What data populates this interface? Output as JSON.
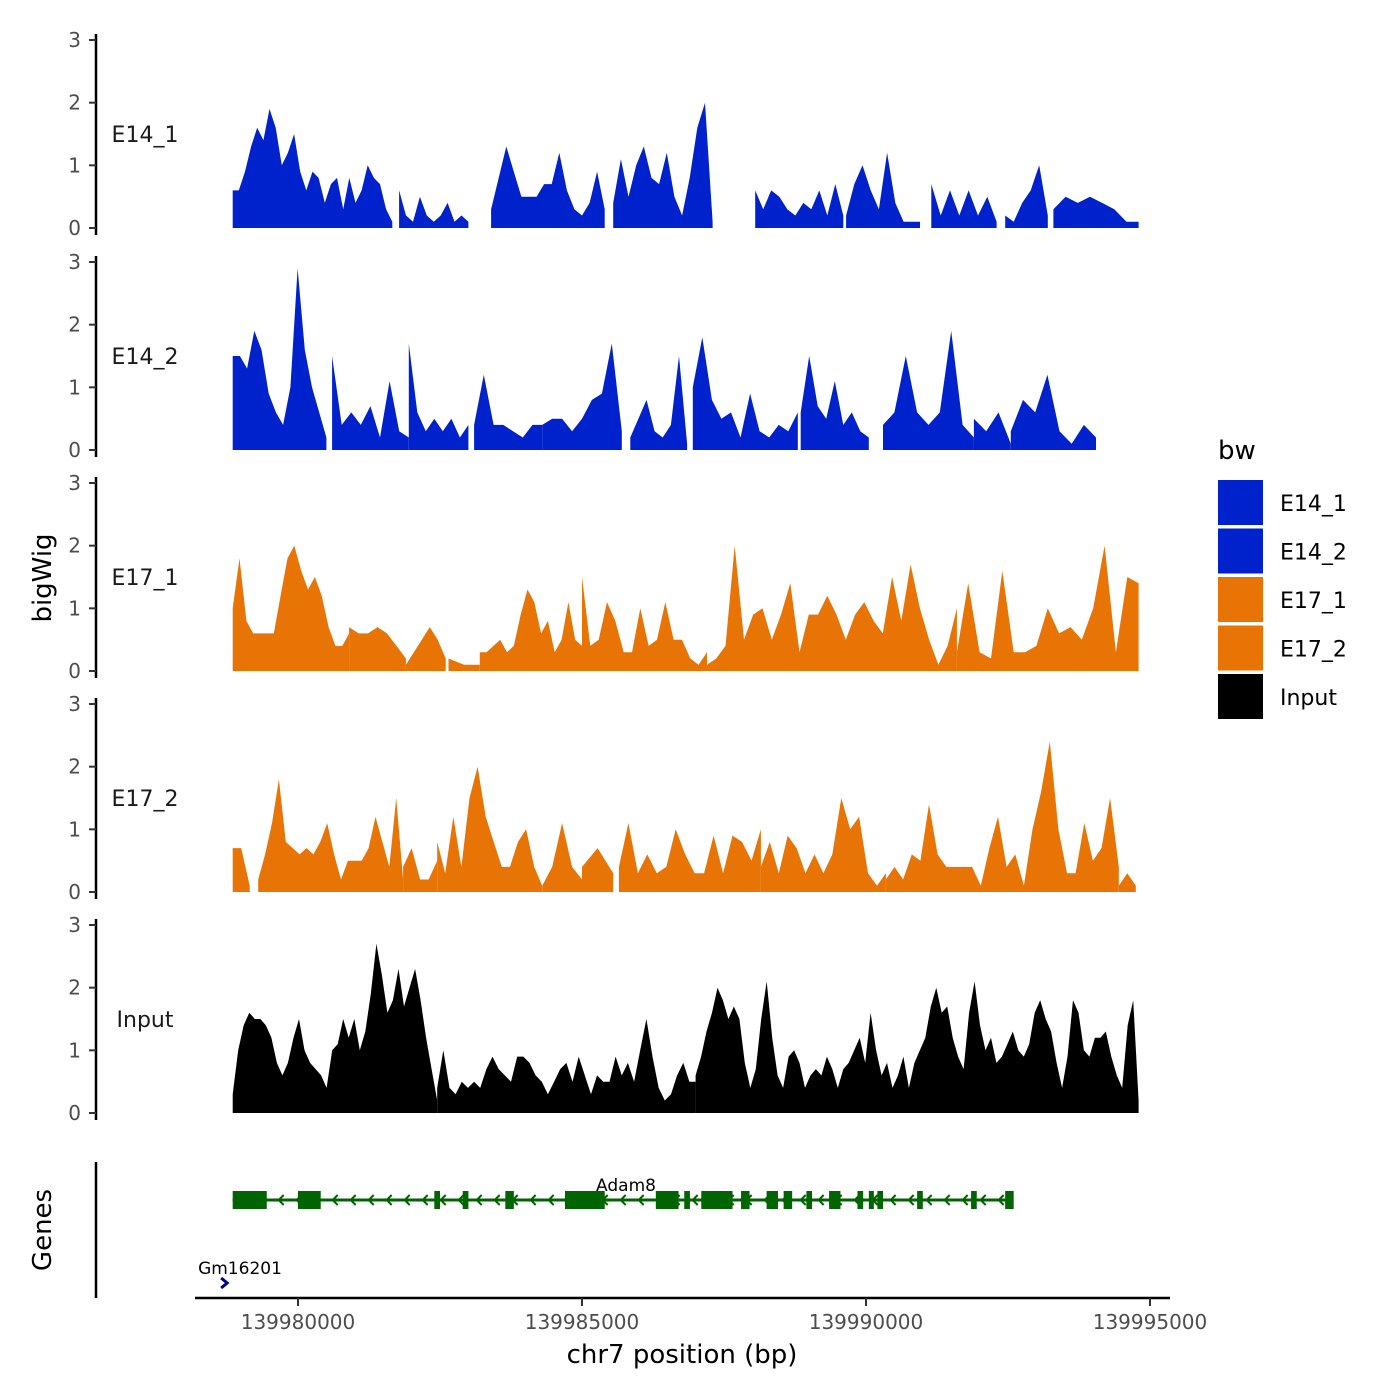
{
  "chart_data": {
    "type": "area",
    "title": "",
    "xlabel": "chr7 position (bp)",
    "ylabel": "bigWig",
    "genes_label": "Genes",
    "xlim": [
      139978200,
      139995400
    ],
    "ylim": [
      0,
      3
    ],
    "yticks": [
      0,
      1,
      2,
      3
    ],
    "xticks": [
      139980000,
      139985000,
      139990000,
      139995000
    ],
    "xtick_labels": [
      "139980000",
      "139985000",
      "139990000",
      "139995000"
    ],
    "legend": {
      "title": "bw",
      "position": "right",
      "entries": [
        {
          "name": "E14_1",
          "color": "#0022cc"
        },
        {
          "name": "E14_2",
          "color": "#0022cc"
        },
        {
          "name": "E17_1",
          "color": "#e87405"
        },
        {
          "name": "E17_2",
          "color": "#e87405"
        },
        {
          "name": "Input",
          "color": "#000000"
        }
      ]
    },
    "series": [
      {
        "name": "E14_1",
        "color": "#0022cc",
        "segments": [
          {
            "start": 139978850,
            "end": 139981660,
            "values": [
              0.6,
              0.6,
              0.9,
              1.3,
              1.6,
              1.4,
              1.9,
              1.6,
              1.0,
              1.2,
              1.5,
              0.9,
              0.6,
              0.9,
              0.8,
              0.4,
              0.7,
              0.8,
              0.3,
              0.8,
              0.4,
              0.6,
              1.0,
              0.8,
              0.7,
              0.3,
              0.1
            ]
          },
          {
            "start": 139981780,
            "end": 139983000,
            "values": [
              0.6,
              0.2,
              0.1,
              0.5,
              0.2,
              0.1,
              0.2,
              0.4,
              0.1,
              0.2,
              0.1
            ]
          },
          {
            "start": 139983400,
            "end": 139985400,
            "values": [
              0.3,
              0.8,
              1.3,
              0.9,
              0.5,
              0.5,
              0.5,
              0.7,
              0.7,
              1.2,
              0.6,
              0.3,
              0.2,
              0.4,
              0.9,
              0.3
            ]
          },
          {
            "start": 139985550,
            "end": 139987300,
            "values": [
              0.4,
              1.1,
              0.5,
              1.0,
              1.3,
              0.8,
              0.7,
              1.2,
              0.5,
              0.2,
              0.8,
              1.6,
              2.0,
              0.1
            ]
          },
          {
            "start": 139988050,
            "end": 139989600,
            "values": [
              0.6,
              0.3,
              0.6,
              0.5,
              0.3,
              0.2,
              0.4,
              0.3,
              0.6,
              0.2,
              0.7,
              0.2
            ]
          },
          {
            "start": 139989650,
            "end": 139990950,
            "values": [
              0.2,
              0.7,
              1.0,
              0.6,
              0.3,
              1.2,
              0.4,
              0.1,
              0.1,
              0.1
            ]
          },
          {
            "start": 139991150,
            "end": 139992300,
            "values": [
              0.7,
              0.2,
              0.6,
              0.2,
              0.6,
              0.2,
              0.5,
              0.1
            ]
          },
          {
            "start": 139992450,
            "end": 139993200,
            "values": [
              0.2,
              0.1,
              0.4,
              0.6,
              1.0,
              0.2
            ]
          },
          {
            "start": 139993300,
            "end": 139994800,
            "values": [
              0.3,
              0.5,
              0.4,
              0.5,
              0.4,
              0.3,
              0.1,
              0.1
            ]
          }
        ]
      },
      {
        "name": "E14_2",
        "color": "#0022cc",
        "segments": [
          {
            "start": 139978850,
            "end": 139980500,
            "values": [
              1.5,
              1.5,
              1.3,
              1.9,
              1.6,
              0.9,
              0.6,
              0.4,
              1.0,
              2.9,
              1.6,
              1.0,
              0.6,
              0.2
            ]
          },
          {
            "start": 139980600,
            "end": 139981950,
            "values": [
              1.5,
              0.4,
              0.6,
              0.4,
              0.7,
              0.2,
              1.1,
              0.3,
              0.2
            ]
          },
          {
            "start": 139981950,
            "end": 139983000,
            "values": [
              1.7,
              0.6,
              0.3,
              0.5,
              0.3,
              0.5,
              0.2,
              0.4
            ]
          },
          {
            "start": 139983100,
            "end": 139984300,
            "values": [
              0.4,
              1.2,
              0.4,
              0.4,
              0.3,
              0.2,
              0.4,
              0.4
            ]
          },
          {
            "start": 139984300,
            "end": 139985700,
            "values": [
              0.4,
              0.5,
              0.5,
              0.3,
              0.5,
              0.8,
              0.9,
              1.7,
              0.3
            ]
          },
          {
            "start": 139985850,
            "end": 139986850,
            "values": [
              0.2,
              0.5,
              0.8,
              0.3,
              0.2,
              0.4,
              1.5,
              0.1
            ]
          },
          {
            "start": 139986950,
            "end": 139988800,
            "values": [
              1.0,
              1.8,
              0.8,
              0.5,
              0.6,
              0.2,
              0.9,
              0.3,
              0.2,
              0.4,
              0.3,
              0.6
            ]
          },
          {
            "start": 139988850,
            "end": 139990050,
            "values": [
              0.6,
              1.5,
              0.7,
              0.5,
              1.1,
              0.4,
              0.6,
              0.3,
              0.2
            ]
          },
          {
            "start": 139990300,
            "end": 139991900,
            "values": [
              0.4,
              0.6,
              1.5,
              0.6,
              0.4,
              0.6,
              1.9,
              0.4,
              0.2
            ]
          },
          {
            "start": 139991900,
            "end": 139992550,
            "values": [
              0.5,
              0.3,
              0.6,
              0.1
            ]
          },
          {
            "start": 139992550,
            "end": 139994050,
            "values": [
              0.3,
              0.8,
              0.6,
              1.2,
              0.3,
              0.1,
              0.4,
              0.2
            ]
          }
        ]
      },
      {
        "name": "E17_1",
        "color": "#e87405",
        "segments": [
          {
            "start": 139978850,
            "end": 139980900,
            "values": [
              1.0,
              1.8,
              0.8,
              0.6,
              0.6,
              0.6,
              0.6,
              1.2,
              1.8,
              2.0,
              1.6,
              1.3,
              1.5,
              1.2,
              0.7,
              0.4,
              0.4,
              0.6
            ]
          },
          {
            "start": 139980900,
            "end": 139981900,
            "values": [
              0.7,
              0.6,
              0.6,
              0.7,
              0.6,
              0.4,
              0.2
            ]
          },
          {
            "start": 139981900,
            "end": 139982600,
            "values": [
              0.1,
              0.3,
              0.5,
              0.7,
              0.5,
              0.2
            ]
          },
          {
            "start": 139982650,
            "end": 139983200,
            "values": [
              0.2,
              0.1,
              0.1
            ]
          },
          {
            "start": 139983200,
            "end": 139985000,
            "values": [
              0.3,
              0.3,
              0.4,
              0.5,
              0.3,
              0.4,
              0.9,
              1.3,
              1.1,
              0.6,
              0.8,
              0.3,
              0.5,
              1.1,
              0.5,
              0.4
            ]
          },
          {
            "start": 139985000,
            "end": 139987200,
            "values": [
              1.5,
              0.4,
              0.5,
              1.1,
              0.8,
              0.3,
              0.3,
              1.0,
              0.4,
              0.5,
              1.1,
              0.5,
              0.5,
              0.2,
              0.1,
              0.3
            ]
          },
          {
            "start": 139987200,
            "end": 139991600,
            "values": [
              0.1,
              0.2,
              0.4,
              2.0,
              0.5,
              0.9,
              1.0,
              0.5,
              0.9,
              1.4,
              0.3,
              0.9,
              0.9,
              1.2,
              0.9,
              0.5,
              0.9,
              1.1,
              0.8,
              0.6,
              1.5,
              0.8,
              1.7,
              1.0,
              0.5,
              0.1,
              0.4,
              1.0
            ]
          },
          {
            "start": 139991600,
            "end": 139994800,
            "values": [
              0.3,
              1.4,
              0.3,
              0.2,
              1.6,
              0.3,
              0.3,
              0.4,
              1.0,
              0.6,
              0.7,
              0.5,
              1.0,
              2.0,
              0.3,
              1.5,
              1.4
            ]
          }
        ]
      },
      {
        "name": "E17_2",
        "color": "#e87405",
        "segments": [
          {
            "start": 139978850,
            "end": 139979150,
            "values": [
              0.7,
              0.7,
              0.1
            ]
          },
          {
            "start": 139979300,
            "end": 139981850,
            "values": [
              0.2,
              0.6,
              1.1,
              1.8,
              0.8,
              0.7,
              0.6,
              0.7,
              0.6,
              0.8,
              1.1,
              0.6,
              0.2,
              0.5,
              0.5,
              0.5,
              0.7,
              1.2,
              0.8,
              0.4,
              1.5,
              0.2
            ]
          },
          {
            "start": 139981850,
            "end": 139982450,
            "values": [
              0.4,
              0.7,
              0.2,
              0.2,
              0.5
            ]
          },
          {
            "start": 139982450,
            "end": 139984300,
            "values": [
              0.8,
              0.3,
              1.2,
              0.4,
              1.5,
              2.0,
              1.2,
              0.8,
              0.4,
              0.4,
              0.8,
              1.0,
              0.4,
              0.1
            ]
          },
          {
            "start": 139984300,
            "end": 139985000,
            "values": [
              0.1,
              0.4,
              1.1,
              0.4,
              0.2
            ]
          },
          {
            "start": 139985000,
            "end": 139985550,
            "values": [
              0.4,
              0.7,
              0.3
            ]
          },
          {
            "start": 139985650,
            "end": 139988150,
            "values": [
              0.4,
              1.1,
              0.3,
              0.6,
              0.3,
              0.4,
              1.0,
              0.6,
              0.3,
              0.3,
              0.9,
              0.3,
              0.9,
              0.8,
              0.5,
              1.0
            ]
          },
          {
            "start": 139988150,
            "end": 139990350,
            "values": [
              0.4,
              0.8,
              0.3,
              0.9,
              0.7,
              0.3,
              0.6,
              0.3,
              0.6,
              1.5,
              1.0,
              1.2,
              0.3,
              0.1,
              0.3
            ]
          },
          {
            "start": 139990350,
            "end": 139994450,
            "values": [
              0.2,
              0.4,
              0.2,
              0.6,
              0.5,
              1.4,
              0.6,
              0.4,
              0.4,
              0.4,
              0.4,
              0.1,
              0.7,
              1.2,
              0.4,
              0.6,
              0.1,
              1.0,
              1.6,
              2.4,
              1.0,
              0.3,
              0.3,
              1.1,
              0.5,
              0.7,
              1.5,
              0.4
            ]
          },
          {
            "start": 139994450,
            "end": 139994750,
            "values": [
              0.1,
              0.3,
              0.1
            ]
          }
        ]
      },
      {
        "name": "Input",
        "color": "#000000",
        "segments": [
          {
            "start": 139978850,
            "end": 139982450,
            "values": [
              0.3,
              1.0,
              1.4,
              1.6,
              1.5,
              1.5,
              1.4,
              1.2,
              0.8,
              0.6,
              0.8,
              1.2,
              1.5,
              1.0,
              0.8,
              0.7,
              0.6,
              0.4,
              1.0,
              1.1,
              1.5,
              1.2,
              1.5,
              1.0,
              1.3,
              1.9,
              2.7,
              2.2,
              1.6,
              1.8,
              2.3,
              1.7,
              2.0,
              2.3,
              1.8,
              1.2,
              0.7,
              0.2
            ]
          },
          {
            "start": 139982450,
            "end": 139987000,
            "values": [
              0.4,
              1.0,
              0.4,
              0.3,
              0.5,
              0.4,
              0.5,
              0.4,
              0.7,
              0.9,
              0.7,
              0.6,
              0.5,
              0.9,
              0.9,
              0.8,
              0.6,
              0.5,
              0.3,
              0.5,
              0.7,
              0.8,
              0.5,
              0.9,
              0.6,
              0.3,
              0.6,
              0.5,
              0.5,
              0.9,
              0.6,
              0.8,
              0.5,
              1.0,
              1.5,
              0.9,
              0.4,
              0.2,
              0.3,
              0.6,
              0.8,
              0.5,
              0.5
            ]
          },
          {
            "start": 139987000,
            "end": 139994800,
            "values": [
              0.6,
              0.9,
              1.3,
              1.6,
              2.0,
              1.8,
              1.5,
              1.7,
              1.5,
              0.8,
              0.4,
              0.7,
              1.5,
              2.1,
              1.2,
              0.6,
              0.4,
              0.9,
              1.0,
              0.8,
              0.4,
              0.6,
              0.7,
              0.6,
              0.9,
              0.7,
              0.4,
              0.7,
              0.8,
              1.0,
              1.2,
              0.8,
              1.6,
              1.0,
              0.6,
              0.8,
              0.4,
              0.6,
              0.9,
              0.4,
              0.8,
              1.0,
              1.2,
              1.7,
              2.0,
              1.6,
              1.7,
              1.2,
              0.9,
              0.7,
              1.6,
              2.1,
              1.4,
              1.0,
              1.2,
              0.8,
              0.9,
              1.1,
              1.3,
              1.0,
              0.9,
              1.1,
              1.6,
              1.8,
              1.5,
              1.3,
              0.8,
              0.4,
              0.9,
              1.8,
              1.6,
              1.0,
              0.9,
              1.2,
              1.2,
              1.3,
              0.9,
              0.6,
              0.4,
              1.4,
              1.8,
              0.2
            ]
          }
        ]
      }
    ],
    "genes": [
      {
        "name": "Adam8",
        "color": "#006400",
        "strand": "-",
        "start": 139978850,
        "end": 139992500,
        "exons": [
          [
            139978850,
            139979450
          ],
          [
            139980000,
            139980400
          ],
          [
            139982400,
            139982500
          ],
          [
            139982900,
            139983000
          ],
          [
            139983650,
            139983800
          ],
          [
            139984700,
            139985400
          ],
          [
            139986300,
            139986700
          ],
          [
            139986800,
            139986900
          ],
          [
            139987100,
            139987650
          ],
          [
            139987800,
            139987950
          ],
          [
            139988250,
            139988450
          ],
          [
            139988550,
            139988700
          ],
          [
            139988950,
            139989050
          ],
          [
            139989350,
            139989550
          ],
          [
            139989850,
            139989950
          ],
          [
            139990050,
            139990100
          ],
          [
            139990200,
            139990300
          ],
          [
            139990900,
            139991000
          ],
          [
            139991850,
            139991950
          ],
          [
            139992450,
            139992600
          ]
        ]
      },
      {
        "name": "Gm16201",
        "color": "#00008b",
        "strand": "+",
        "start": 139978700,
        "end": 139978850,
        "exons": []
      }
    ]
  }
}
